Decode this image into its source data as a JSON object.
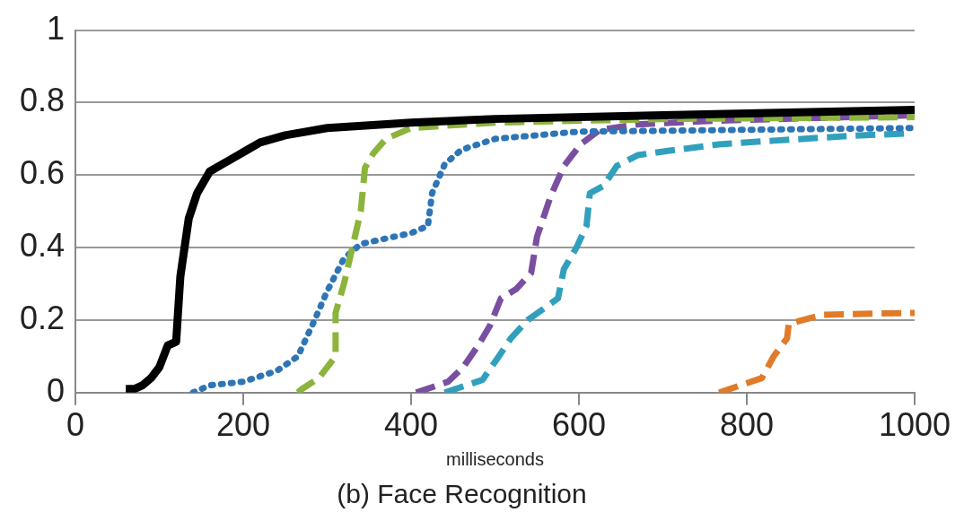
{
  "chart_data": {
    "type": "line",
    "title": "(b) Face Recognition",
    "xlabel": "milliseconds",
    "xlim": [
      0,
      1000
    ],
    "xticks": [
      0,
      200,
      400,
      600,
      800,
      1000
    ],
    "ylim": [
      0,
      1
    ],
    "yticks": [
      0,
      0.2,
      0.4,
      0.6,
      0.8,
      1
    ],
    "grid": "y",
    "legend": false,
    "marker": "none",
    "series": [
      {
        "color": "#000000",
        "line_style": "solid",
        "x": [
          60,
          70,
          80,
          90,
          100,
          110,
          120,
          125,
          135,
          145,
          160,
          175,
          190,
          205,
          220,
          250,
          300,
          400,
          500,
          700,
          1000
        ],
        "values": [
          0.01,
          0.01,
          0.02,
          0.04,
          0.07,
          0.13,
          0.14,
          0.32,
          0.48,
          0.55,
          0.61,
          0.63,
          0.65,
          0.67,
          0.69,
          0.71,
          0.73,
          0.745,
          0.755,
          0.765,
          0.78
        ]
      },
      {
        "color": "#8cb43c",
        "line_style": "dashed",
        "x": [
          265,
          270,
          290,
          310,
          310,
          320,
          330,
          340,
          345,
          355,
          370,
          400,
          500,
          700,
          1000
        ],
        "values": [
          0,
          0.01,
          0.04,
          0.1,
          0.22,
          0.3,
          0.4,
          0.5,
          0.62,
          0.66,
          0.7,
          0.73,
          0.745,
          0.755,
          0.76
        ]
      },
      {
        "color": "#2e75b6",
        "line_style": "dotted",
        "x": [
          140,
          160,
          200,
          240,
          265,
          285,
          300,
          320,
          340,
          400,
          420,
          425,
          440,
          460,
          500,
          600,
          1000
        ],
        "values": [
          0,
          0.02,
          0.03,
          0.06,
          0.1,
          0.2,
          0.28,
          0.37,
          0.41,
          0.44,
          0.46,
          0.55,
          0.63,
          0.67,
          0.7,
          0.72,
          0.73
        ]
      },
      {
        "color": "#7a4fa0",
        "line_style": "dashed",
        "x": [
          406,
          444,
          462,
          480,
          494,
          507,
          525,
          543,
          550,
          566,
          582,
          602,
          625,
          670,
          760,
          1000
        ],
        "values": [
          0,
          0.03,
          0.07,
          0.13,
          0.185,
          0.26,
          0.285,
          0.33,
          0.43,
          0.54,
          0.625,
          0.685,
          0.725,
          0.74,
          0.75,
          0.765
        ]
      },
      {
        "color": "#31a0bd",
        "line_style": "dashed",
        "x": [
          440,
          485,
          503,
          519,
          539,
          575,
          582,
          597,
          609,
          613,
          629,
          645,
          670,
          706,
          767,
          832,
          922,
          992
        ],
        "values": [
          0,
          0.035,
          0.095,
          0.15,
          0.2,
          0.26,
          0.34,
          0.4,
          0.46,
          0.55,
          0.57,
          0.625,
          0.655,
          0.667,
          0.685,
          0.695,
          0.708,
          0.715
        ]
      },
      {
        "color": "#e07b28",
        "line_style": "dashed",
        "x": [
          767,
          818,
          832,
          848,
          850,
          891,
          1000
        ],
        "values": [
          0,
          0.04,
          0.1,
          0.15,
          0.19,
          0.215,
          0.22
        ]
      }
    ]
  }
}
